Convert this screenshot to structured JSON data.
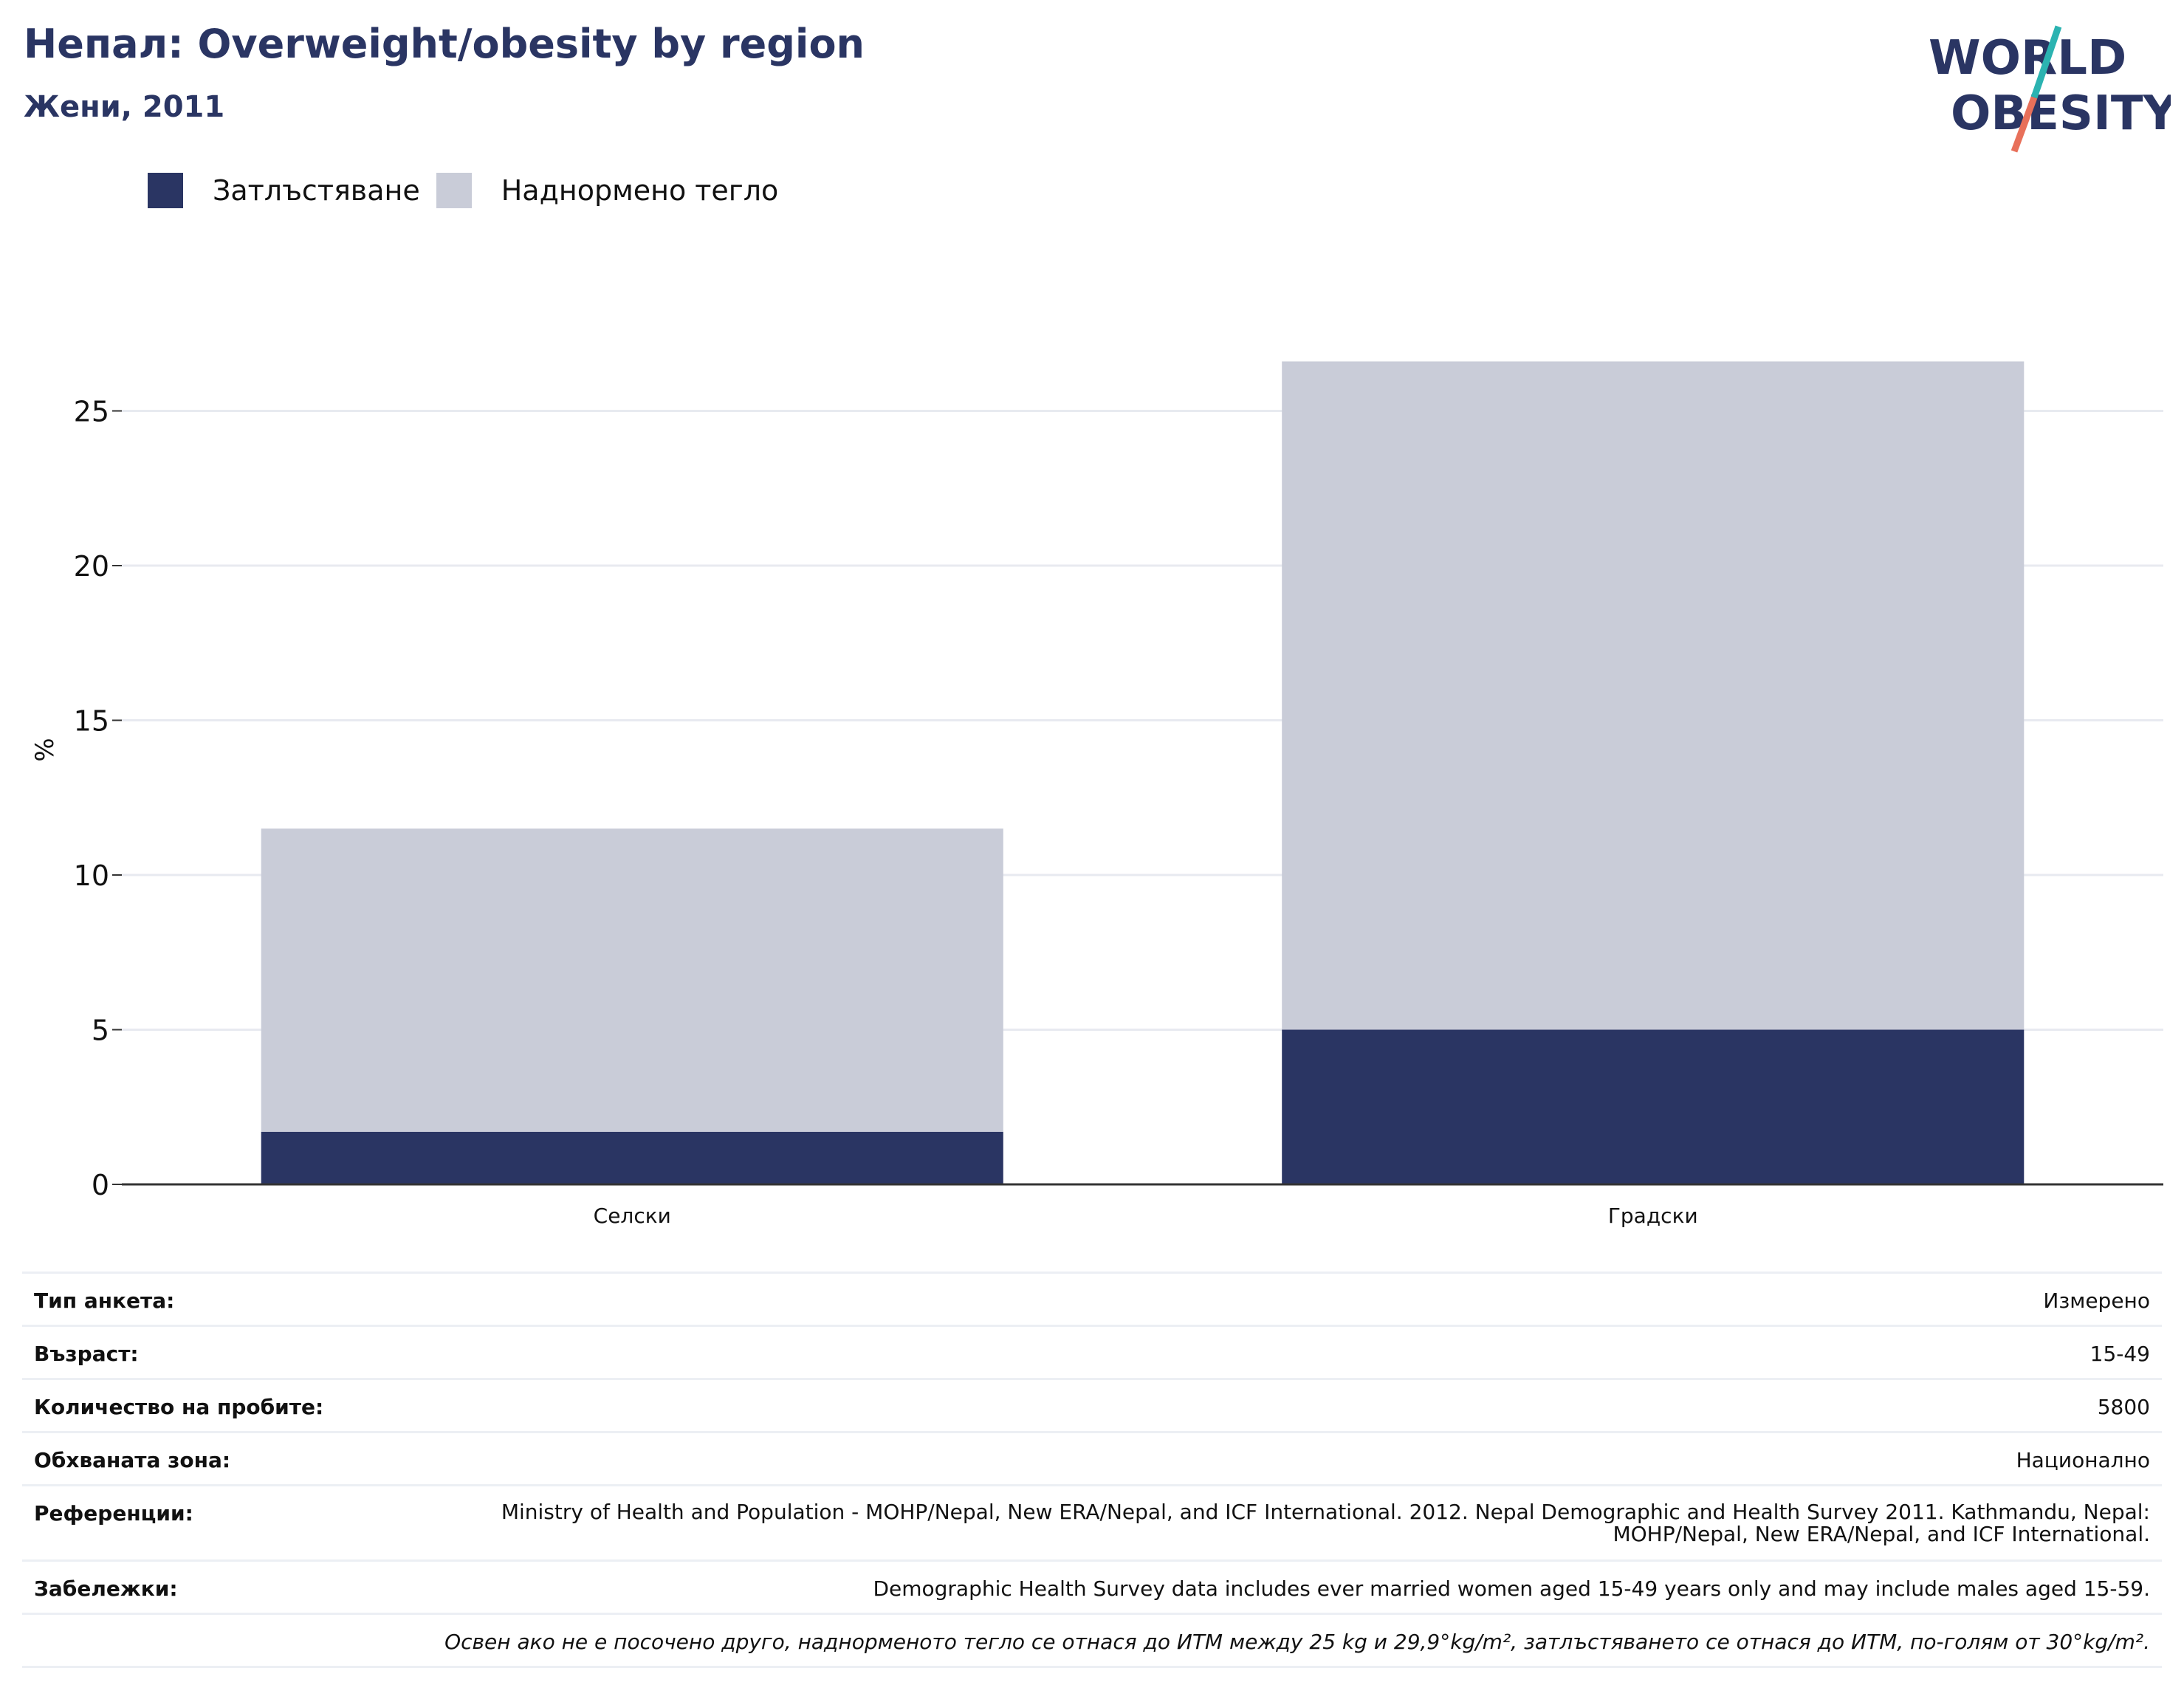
{
  "header": {
    "title": "Непал: Overweight/obesity by region",
    "subtitle": "Жени, 2011"
  },
  "logo": {
    "line1": "WORLD",
    "line2": "OBESITY",
    "colors": {
      "text": "#2a3563",
      "slash_top": "#2bb3b1",
      "slash_bottom": "#e8705a"
    }
  },
  "colors": {
    "obesity": "#2a3563",
    "overweight": "#c9ccd8",
    "grid": "#e8eaf0",
    "axis": "#333333"
  },
  "legend": [
    {
      "label": "Затлъстяване",
      "color": "#2a3563"
    },
    {
      "label": "Наднормено тегло",
      "color": "#c9ccd8"
    }
  ],
  "chart_data": {
    "type": "bar",
    "stacked": true,
    "categories": [
      "Селски",
      "Градски"
    ],
    "series": [
      {
        "name": "Затлъстяване",
        "values": [
          1.7,
          5.0
        ]
      },
      {
        "name": "Наднормено тегло",
        "values": [
          9.8,
          21.6
        ]
      }
    ],
    "ylabel": "%",
    "ylim": [
      0,
      30
    ],
    "yticks": [
      0,
      5,
      10,
      15,
      20,
      25
    ],
    "grid": true
  },
  "meta": [
    {
      "label": "Тип анкета:",
      "value": "Измерено"
    },
    {
      "label": "Възраст:",
      "value": "15-49"
    },
    {
      "label": "Количество на пробите:",
      "value": "5800"
    },
    {
      "label": "Обхваната зона:",
      "value": "Национално"
    },
    {
      "label": "Референции:",
      "value": "Ministry of Health and Population - MOHP/Nepal, New ERA/Nepal, and ICF International. 2012. Nepal Demographic and Health Survey 2011. Kathmandu, Nepal: MOHP/Nepal, New ERA/Nepal, and ICF International."
    },
    {
      "label": "Забележки:",
      "value": "Demographic Health Survey data includes ever married women aged 15-49 years only and may include males aged 15-59."
    }
  ],
  "footnote": "Освен ако не е посочено друго, наднорменото тегло се отнася до ИТМ между 25 kg и 29,9°kg/m², затлъстяването се отнася до ИТМ, по-голям от 30°kg/m²."
}
